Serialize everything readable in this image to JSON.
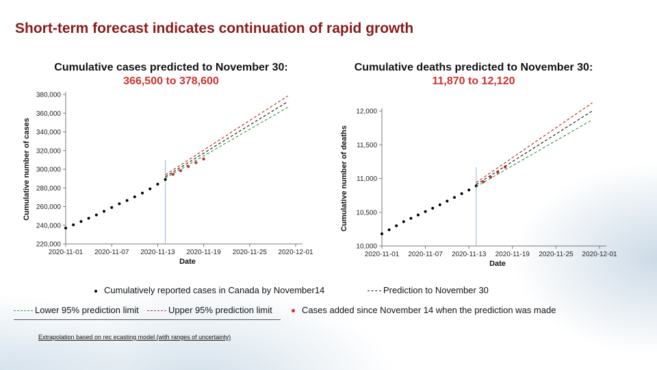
{
  "page": {
    "title": "Short-term forecast indicates continuation of rapid growth",
    "footnote": "Extrapolation based on rec                                      ecasting model (with ranges of uncertainty)"
  },
  "legend": {
    "reported": "Cumulatively reported cases in Canada by November14",
    "prediction": "Prediction to November 30",
    "lower": "Lower 95% prediction limit",
    "upper": "Upper 95% prediction limit",
    "added": "Cases added since November 14 when the prediction was made"
  },
  "colors": {
    "title": "#8b1a1a",
    "range": "#d0312d",
    "prediction": "#222222",
    "lower": "#3a9a4a",
    "upper": "#c0302a",
    "added": "#d0312d",
    "vline": "#8fb3d6"
  },
  "chart_data": [
    {
      "type": "line",
      "title": "Cumulative cases predicted to November 30:",
      "subtitle": "366,500 to 378,600",
      "xlabel": "Date",
      "ylabel": "Cumulative number of cases",
      "xticks": [
        "2020-11-01",
        "2020-11-07",
        "2020-11-13",
        "2020-11-19",
        "2020-11-25",
        "2020-12-01"
      ],
      "yticks": [
        "220,000",
        "240,000",
        "260,000",
        "280,000",
        "300,000",
        "320,000",
        "340,000",
        "360,000",
        "380,000"
      ],
      "xlim": [
        "2020-11-01",
        "2020-12-01"
      ],
      "ylim": [
        220000,
        380000
      ],
      "vline": "2020-11-14",
      "series": [
        {
          "name": "Cumulatively reported cases in Canada by November14",
          "style": "dots",
          "x": [
            "2020-11-01",
            "2020-11-02",
            "2020-11-03",
            "2020-11-04",
            "2020-11-05",
            "2020-11-06",
            "2020-11-07",
            "2020-11-08",
            "2020-11-09",
            "2020-11-10",
            "2020-11-11",
            "2020-11-12",
            "2020-11-13",
            "2020-11-14"
          ],
          "y": [
            237000,
            240500,
            244000,
            247500,
            251000,
            255000,
            259000,
            263000,
            266500,
            270500,
            274500,
            279000,
            284000,
            289000
          ]
        },
        {
          "name": "Cases added since November 14 when the prediction was made",
          "style": "red-dots",
          "x": [
            "2020-11-15",
            "2020-11-16",
            "2020-11-17",
            "2020-11-18",
            "2020-11-19"
          ],
          "y": [
            294500,
            298500,
            303000,
            307000,
            311000
          ]
        },
        {
          "name": "Prediction to November 30",
          "style": "dash",
          "x": [
            "2020-11-14",
            "2020-11-30"
          ],
          "y": [
            292000,
            372500
          ]
        },
        {
          "name": "Lower 95% prediction limit",
          "style": "dash-green",
          "x": [
            "2020-11-14",
            "2020-11-30"
          ],
          "y": [
            290500,
            366500
          ]
        },
        {
          "name": "Upper 95% prediction limit",
          "style": "dash-red",
          "x": [
            "2020-11-14",
            "2020-11-30"
          ],
          "y": [
            294000,
            378600
          ]
        }
      ]
    },
    {
      "type": "line",
      "title": "Cumulative deaths predicted to November 30:",
      "subtitle": "11,870 to 12,120",
      "xlabel": "Date",
      "ylabel": "Cumulative number of deaths",
      "xticks": [
        "2020-11-01",
        "2020-11-07",
        "2020-11-13",
        "2020-11-19",
        "2020-11-25",
        "2020-12-01"
      ],
      "yticks": [
        "10,000",
        "10,500",
        "11,000",
        "11,500",
        "12,000"
      ],
      "xlim": [
        "2020-11-01",
        "2020-12-01"
      ],
      "ylim": [
        10000,
        12000
      ],
      "vline": "2020-11-14",
      "series": [
        {
          "name": "Cumulatively reported cases in Canada by November14",
          "style": "dots",
          "x": [
            "2020-11-01",
            "2020-11-02",
            "2020-11-03",
            "2020-11-04",
            "2020-11-05",
            "2020-11-06",
            "2020-11-07",
            "2020-11-08",
            "2020-11-09",
            "2020-11-10",
            "2020-11-11",
            "2020-11-12",
            "2020-11-13",
            "2020-11-14"
          ],
          "y": [
            10180,
            10240,
            10300,
            10360,
            10410,
            10460,
            10510,
            10560,
            10610,
            10665,
            10720,
            10775,
            10830,
            10890
          ]
        },
        {
          "name": "Cases added since November 14 when the prediction was made",
          "style": "red-dots",
          "x": [
            "2020-11-15",
            "2020-11-16",
            "2020-11-17",
            "2020-11-18"
          ],
          "y": [
            10950,
            11020,
            11090,
            11170
          ]
        },
        {
          "name": "Prediction to November 30",
          "style": "dash",
          "x": [
            "2020-11-14",
            "2020-11-30"
          ],
          "y": [
            10910,
            12000
          ]
        },
        {
          "name": "Lower 95% prediction limit",
          "style": "dash-green",
          "x": [
            "2020-11-14",
            "2020-11-30"
          ],
          "y": [
            10880,
            11870
          ]
        },
        {
          "name": "Upper 95% prediction limit",
          "style": "dash-red",
          "x": [
            "2020-11-14",
            "2020-11-30"
          ],
          "y": [
            10940,
            12120
          ]
        }
      ]
    }
  ]
}
